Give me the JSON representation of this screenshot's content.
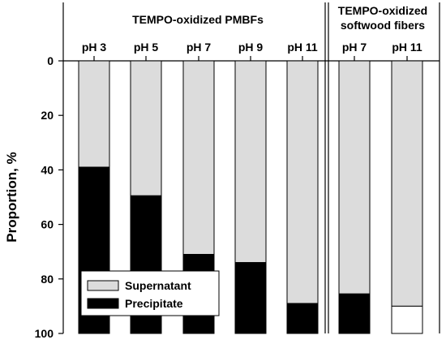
{
  "chart_data": {
    "type": "bar",
    "stacked": true,
    "y_axis_inverted": true,
    "ylabel": "Proportion, %",
    "ylim": [
      0,
      100
    ],
    "yticks": [
      "0",
      "20",
      "40",
      "60",
      "80",
      "100"
    ],
    "groups": [
      {
        "title": "TEMPO-oxidized PMBFs",
        "categories": [
          "pH 3",
          "pH 5",
          "pH 7",
          "pH 9",
          "pH 11"
        ],
        "supernatant": [
          39,
          49.5,
          71,
          74,
          89
        ],
        "precipitate": [
          61,
          50.5,
          29,
          26,
          11
        ]
      },
      {
        "title_lines": [
          "TEMPO-oxidized",
          "softwood fibers"
        ],
        "categories": [
          "pH 7",
          "pH 11"
        ],
        "supernatant": [
          85.5,
          90
        ],
        "precipitate": [
          14.5,
          10
        ]
      }
    ],
    "legend": {
      "position": "bottom-left",
      "entries": [
        {
          "label": "Supernatant",
          "color": "#dcdcdc"
        },
        {
          "label": "Precipitate",
          "color": "#000000"
        }
      ]
    },
    "colors": {
      "supernatant": "#dcdcdc",
      "precipitate": "#000000",
      "softwood_ph11_precipitate": "#ffffff"
    }
  }
}
